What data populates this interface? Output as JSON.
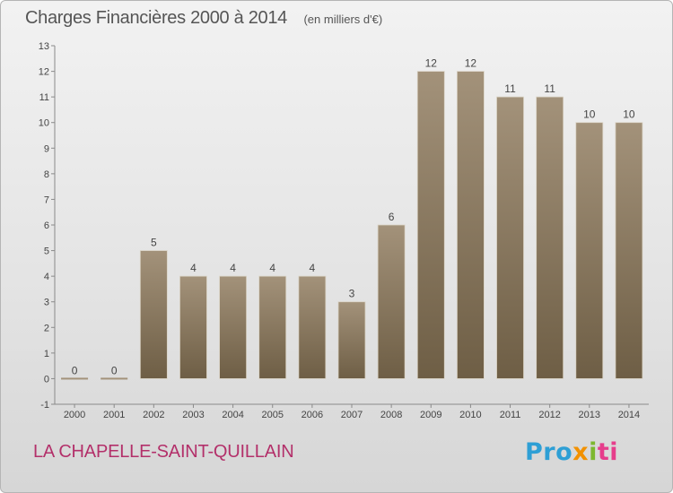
{
  "header": {
    "title": "Charges Financières 2000 à 2014",
    "unit": "(en milliers d'€)"
  },
  "footer": {
    "commune": "LA CHAPELLE-SAINT-QUILLAIN",
    "logo_parts": [
      "Pro",
      "x",
      "i",
      "ti"
    ]
  },
  "colors": {
    "bar_top": "#a3927a",
    "bar_bottom": "#6e5e45",
    "commune_text": "#b3306a"
  },
  "chart_data": {
    "type": "bar",
    "categories": [
      "2000",
      "2001",
      "2002",
      "2003",
      "2004",
      "2005",
      "2006",
      "2007",
      "2008",
      "2009",
      "2010",
      "2011",
      "2012",
      "2013",
      "2014"
    ],
    "values": [
      0,
      0,
      5,
      4,
      4,
      4,
      4,
      3,
      6,
      12,
      12,
      11,
      11,
      10,
      10
    ],
    "data_labels": [
      "0",
      "0",
      "5",
      "4",
      "4",
      "4",
      "4",
      "3",
      "6",
      "12",
      "12",
      "11",
      "11",
      "10",
      "10"
    ],
    "title": "Charges Financières 2000 à 2014",
    "ylim": [
      -1,
      13
    ],
    "yticks": [
      "-1",
      "0",
      "1",
      "2",
      "3",
      "4",
      "5",
      "6",
      "7",
      "8",
      "9",
      "10",
      "11",
      "12",
      "13"
    ],
    "grid": false
  }
}
